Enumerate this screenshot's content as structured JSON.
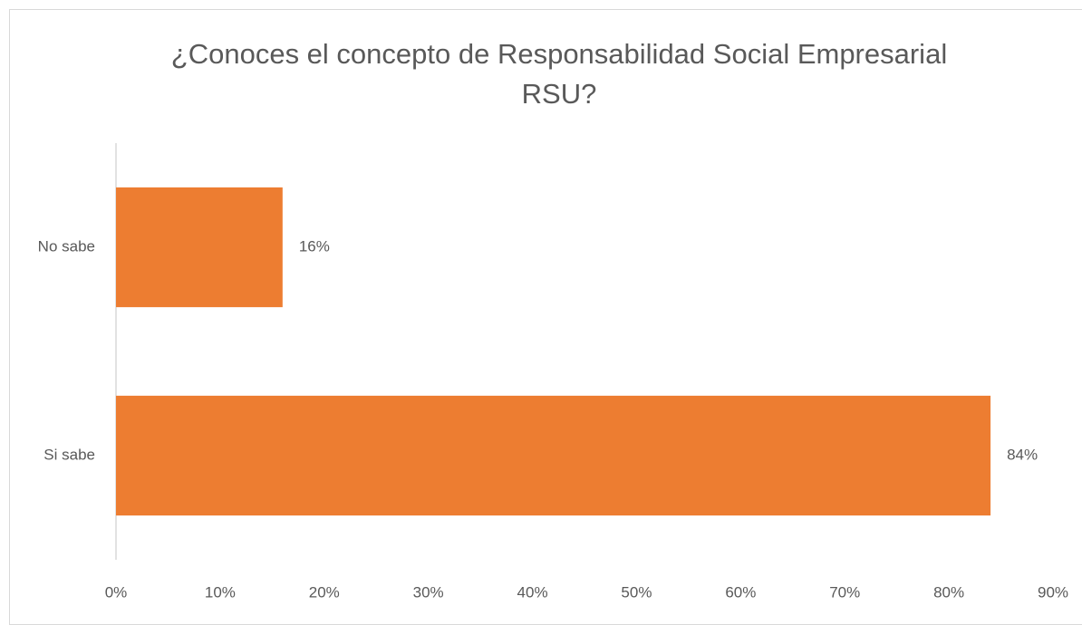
{
  "chart_data": {
    "type": "bar",
    "orientation": "horizontal",
    "title": "¿Conoces el concepto de Responsabilidad Social Empresarial RSU?",
    "categories": [
      "No sabe",
      "Si sabe"
    ],
    "values": [
      16,
      84
    ],
    "value_labels": [
      "16%",
      "84%"
    ],
    "color": "#ED7D31",
    "xlim": [
      0,
      90
    ],
    "xticks": [
      {
        "value": 0,
        "label": "0%"
      },
      {
        "value": 10,
        "label": "10%"
      },
      {
        "value": 20,
        "label": "20%"
      },
      {
        "value": 30,
        "label": "30%"
      },
      {
        "value": 40,
        "label": "40%"
      },
      {
        "value": 50,
        "label": "50%"
      },
      {
        "value": 60,
        "label": "60%"
      },
      {
        "value": 70,
        "label": "70%"
      },
      {
        "value": 80,
        "label": "80%"
      },
      {
        "value": 90,
        "label": "90%"
      }
    ],
    "grid": false
  }
}
